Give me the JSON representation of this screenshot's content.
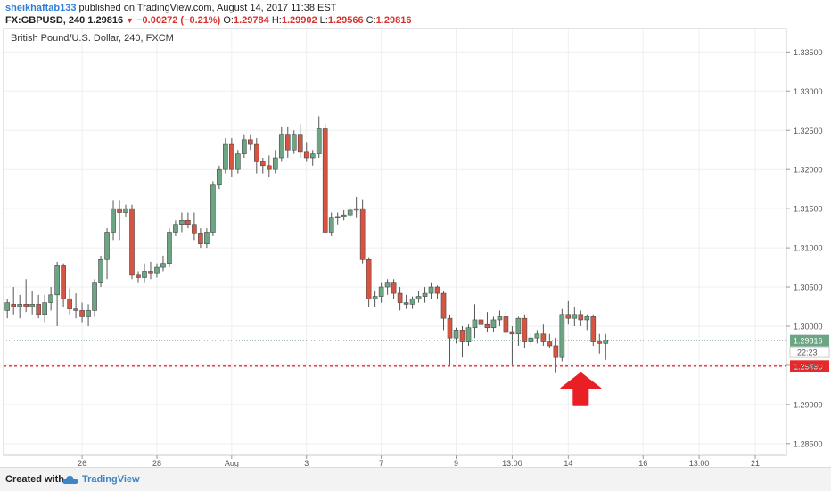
{
  "header": {
    "author": "sheikhaftab133",
    "published": "published on TradingView.com, August 14, 2017 11:38 EST",
    "symbol": "FX:GBPUSD, 240",
    "last": "1.29816",
    "change": "−0.00272 (−0.21%)",
    "o_label": "O:",
    "o_value": "1.29784",
    "h_label": "H:",
    "h_value": "1.29902",
    "l_label": "L:",
    "l_value": "1.29566",
    "c_label": "C:",
    "c_value": "1.29816"
  },
  "footer": {
    "created_with": "Created with",
    "brand": "TradingView"
  },
  "colors": {
    "up": "#6ba583",
    "down": "#d75442",
    "support_line": "#e8292b",
    "arrow": "#ea1e25",
    "last_price_tag": "#6ba583"
  },
  "chart_data": {
    "type": "candlestick",
    "title": "British Pound/U.S. Dollar, 240, FXCM",
    "y_ticks": [
      1.335,
      1.33,
      1.325,
      1.32,
      1.315,
      1.31,
      1.305,
      1.3,
      1.295,
      1.29,
      1.285
    ],
    "y_tick_labels": [
      "1.33500",
      "1.33000",
      "1.32500",
      "1.32000",
      "1.31500",
      "1.31000",
      "1.30500",
      "1.30000",
      "1.29500",
      "1.29000",
      "1.28500"
    ],
    "ylim": [
      1.2835,
      1.338
    ],
    "x_ticks": [
      {
        "label": "26",
        "bar": 12
      },
      {
        "label": "28",
        "bar": 24
      },
      {
        "label": "Aug",
        "bar": 36
      },
      {
        "label": "3",
        "bar": 48
      },
      {
        "label": "7",
        "bar": 60
      },
      {
        "label": "9",
        "bar": 72
      },
      {
        "label": "13:00",
        "bar": 81
      },
      {
        "label": "14",
        "bar": 90
      },
      {
        "label": "16",
        "bar": 102
      },
      {
        "label": "13:00",
        "bar": 111
      },
      {
        "label": "21",
        "bar": 120
      }
    ],
    "x_range": [
      -0.6,
      125
    ],
    "candles": [
      [
        1.302,
        1.3035,
        1.301,
        1.303
      ],
      [
        1.3028,
        1.305,
        1.3015,
        1.3025
      ],
      [
        1.3025,
        1.304,
        1.301,
        1.3028
      ],
      [
        1.3028,
        1.306,
        1.3018,
        1.3025
      ],
      [
        1.3025,
        1.3045,
        1.3015,
        1.3028
      ],
      [
        1.3028,
        1.304,
        1.301,
        1.3015
      ],
      [
        1.3015,
        1.304,
        1.3005,
        1.303
      ],
      [
        1.303,
        1.305,
        1.302,
        1.304
      ],
      [
        1.304,
        1.3082,
        1.3,
        1.3078
      ],
      [
        1.3078,
        1.308,
        1.3025,
        1.3035
      ],
      [
        1.3035,
        1.3048,
        1.3015,
        1.3022
      ],
      [
        1.3022,
        1.3042,
        1.301,
        1.302
      ],
      [
        1.302,
        1.303,
        1.3005,
        1.3012
      ],
      [
        1.3012,
        1.3028,
        1.3,
        1.302
      ],
      [
        1.302,
        1.306,
        1.3012,
        1.3055
      ],
      [
        1.3055,
        1.309,
        1.305,
        1.3085
      ],
      [
        1.3085,
        1.3125,
        1.306,
        1.312
      ],
      [
        1.312,
        1.316,
        1.311,
        1.315
      ],
      [
        1.315,
        1.316,
        1.311,
        1.3145
      ],
      [
        1.3145,
        1.3155,
        1.314,
        1.315
      ],
      [
        1.315,
        1.3155,
        1.306,
        1.3065
      ],
      [
        1.3065,
        1.307,
        1.3055,
        1.3062
      ],
      [
        1.3062,
        1.308,
        1.3055,
        1.307
      ],
      [
        1.307,
        1.3082,
        1.306,
        1.3068
      ],
      [
        1.3068,
        1.308,
        1.3062,
        1.3075
      ],
      [
        1.3075,
        1.309,
        1.307,
        1.308
      ],
      [
        1.308,
        1.3125,
        1.3075,
        1.312
      ],
      [
        1.312,
        1.3135,
        1.3115,
        1.313
      ],
      [
        1.313,
        1.3145,
        1.312,
        1.3135
      ],
      [
        1.3135,
        1.3145,
        1.3125,
        1.313
      ],
      [
        1.313,
        1.3145,
        1.311,
        1.3118
      ],
      [
        1.3118,
        1.3125,
        1.31,
        1.3105
      ],
      [
        1.3105,
        1.3125,
        1.31,
        1.312
      ],
      [
        1.312,
        1.3185,
        1.3115,
        1.318
      ],
      [
        1.318,
        1.3205,
        1.3175,
        1.32
      ],
      [
        1.32,
        1.324,
        1.3195,
        1.3232
      ],
      [
        1.3232,
        1.324,
        1.319,
        1.32
      ],
      [
        1.32,
        1.3225,
        1.3195,
        1.322
      ],
      [
        1.322,
        1.3245,
        1.3215,
        1.3238
      ],
      [
        1.3238,
        1.3245,
        1.3225,
        1.3232
      ],
      [
        1.3232,
        1.324,
        1.3195,
        1.321
      ],
      [
        1.321,
        1.3215,
        1.3195,
        1.3205
      ],
      [
        1.3205,
        1.3218,
        1.319,
        1.32
      ],
      [
        1.32,
        1.3225,
        1.3195,
        1.3215
      ],
      [
        1.3215,
        1.3255,
        1.321,
        1.3245
      ],
      [
        1.3245,
        1.3255,
        1.3215,
        1.3225
      ],
      [
        1.3225,
        1.325,
        1.322,
        1.3245
      ],
      [
        1.3245,
        1.3258,
        1.3215,
        1.3222
      ],
      [
        1.3222,
        1.3235,
        1.321,
        1.3215
      ],
      [
        1.3215,
        1.3225,
        1.3205,
        1.322
      ],
      [
        1.322,
        1.3268,
        1.3215,
        1.3252
      ],
      [
        1.3252,
        1.3258,
        1.3118,
        1.312
      ],
      [
        1.312,
        1.3145,
        1.3115,
        1.3138
      ],
      [
        1.3138,
        1.3145,
        1.313,
        1.314
      ],
      [
        1.314,
        1.3148,
        1.3135,
        1.3142
      ],
      [
        1.3142,
        1.3152,
        1.3138,
        1.3148
      ],
      [
        1.3148,
        1.3165,
        1.3138,
        1.315
      ],
      [
        1.315,
        1.3162,
        1.308,
        1.3085
      ],
      [
        1.3085,
        1.3088,
        1.3025,
        1.3035
      ],
      [
        1.3035,
        1.3045,
        1.3025,
        1.3038
      ],
      [
        1.3038,
        1.3055,
        1.303,
        1.305
      ],
      [
        1.305,
        1.306,
        1.304,
        1.3055
      ],
      [
        1.3055,
        1.306,
        1.3035,
        1.3042
      ],
      [
        1.3042,
        1.305,
        1.302,
        1.303
      ],
      [
        1.303,
        1.304,
        1.3022,
        1.3028
      ],
      [
        1.3028,
        1.3038,
        1.3022,
        1.3035
      ],
      [
        1.3035,
        1.3045,
        1.303,
        1.3038
      ],
      [
        1.3038,
        1.305,
        1.303,
        1.3042
      ],
      [
        1.3042,
        1.3055,
        1.3035,
        1.305
      ],
      [
        1.305,
        1.3052,
        1.3035,
        1.3042
      ],
      [
        1.3042,
        1.3045,
        1.2995,
        1.301
      ],
      [
        1.301,
        1.3015,
        1.295,
        1.2985
      ],
      [
        1.2985,
        1.2998,
        1.2978,
        1.2995
      ],
      [
        1.2995,
        1.3,
        1.296,
        1.298
      ],
      [
        1.298,
        1.3002,
        1.2975,
        1.2998
      ],
      [
        1.2998,
        1.3028,
        1.2985,
        1.3008
      ],
      [
        1.3008,
        1.302,
        1.2998,
        1.3002
      ],
      [
        1.3002,
        1.3018,
        1.2992,
        1.2998
      ],
      [
        1.2998,
        1.3012,
        1.2992,
        1.3008
      ],
      [
        1.3008,
        1.302,
        1.3,
        1.3012
      ],
      [
        1.3012,
        1.3018,
        1.2985,
        1.2992
      ],
      [
        1.2992,
        1.3,
        1.295,
        1.299
      ],
      [
        1.299,
        1.3012,
        1.2975,
        1.301
      ],
      [
        1.301,
        1.3015,
        1.2972,
        1.298
      ],
      [
        1.298,
        1.299,
        1.2975,
        1.2985
      ],
      [
        1.2985,
        1.2995,
        1.2978,
        1.299
      ],
      [
        1.299,
        1.3002,
        1.2975,
        1.298
      ],
      [
        1.298,
        1.299,
        1.2972,
        1.2975
      ],
      [
        1.2975,
        1.2985,
        1.294,
        1.296
      ],
      [
        1.296,
        1.3022,
        1.2955,
        1.3015
      ],
      [
        1.3015,
        1.3032,
        1.3002,
        1.301
      ],
      [
        1.301,
        1.3025,
        1.3,
        1.3015
      ],
      [
        1.3015,
        1.302,
        1.3,
        1.3008
      ],
      [
        1.3008,
        1.3015,
        1.2995,
        1.3012
      ],
      [
        1.3012,
        1.3015,
        1.2975,
        1.298
      ],
      [
        1.298,
        1.299,
        1.2965,
        1.2978
      ],
      [
        1.2978,
        1.299,
        1.2957,
        1.2982
      ]
    ],
    "last_price": 1.29816,
    "last_price_label": "1.29816",
    "countdown_label": "22:23",
    "support_level": 1.2949,
    "support_label": "1.29490",
    "arrow_bar": 92
  }
}
